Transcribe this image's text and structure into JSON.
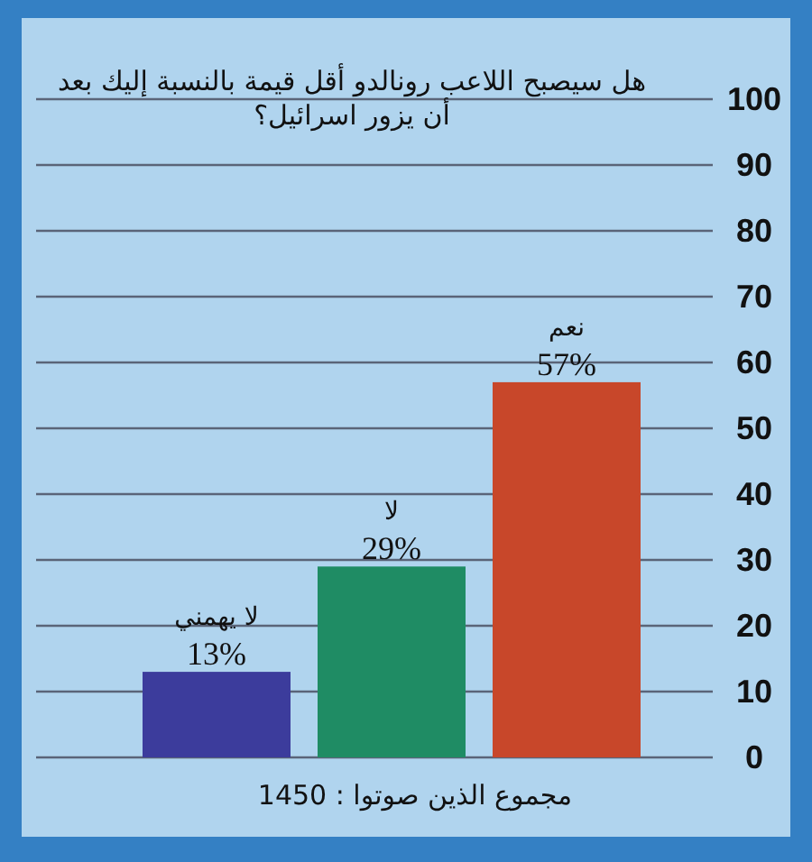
{
  "chart_data": {
    "type": "bar",
    "title": "هل سيصبح اللاعب رونالدو أقل قيمة بالنسبة إليك بعد أن يزور اسرائيل؟",
    "categories": [
      "لا يهمني",
      "لا",
      "نعم"
    ],
    "values": [
      13,
      29,
      57
    ],
    "value_labels": [
      "13%",
      "29%",
      "57%"
    ],
    "colors": [
      "#3c3c9c",
      "#1f8c64",
      "#c8472a"
    ],
    "ylim": [
      0,
      100
    ],
    "yticks": [
      0,
      10,
      20,
      30,
      40,
      50,
      60,
      70,
      80,
      90,
      100
    ],
    "grid": "y",
    "annotations": [
      "مجموع الذين صوتوا : 1450"
    ]
  }
}
